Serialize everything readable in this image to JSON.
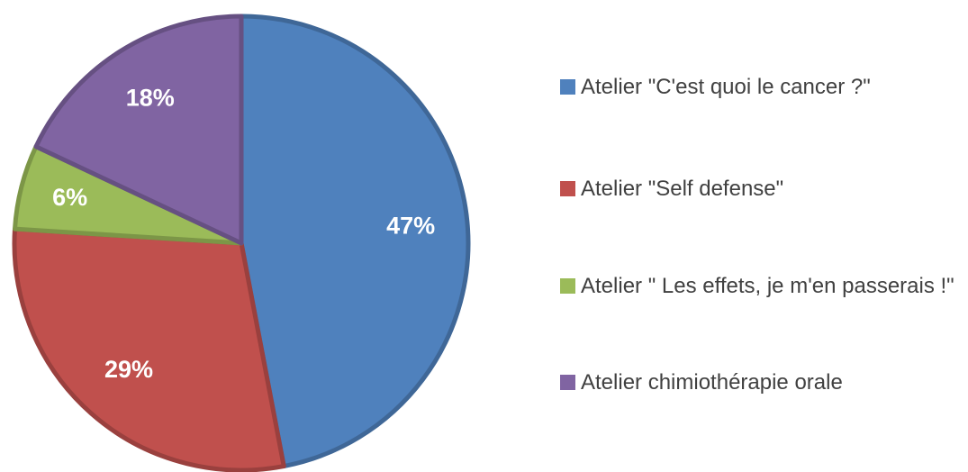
{
  "chart_data": {
    "type": "pie",
    "categories": [
      "Atelier \"C'est quoi le cancer ?\"",
      "Atelier \"Self defense\"",
      "Atelier \" Les effets, je m'en passerais !\"",
      "Atelier chimiothérapie orale"
    ],
    "values": [
      47,
      29,
      6,
      18
    ],
    "value_labels": [
      "47%",
      "29%",
      "6%",
      "18%"
    ],
    "colors": [
      "#4f81bd",
      "#c0504d",
      "#9bbb59",
      "#8064a2"
    ],
    "legend": "right"
  }
}
